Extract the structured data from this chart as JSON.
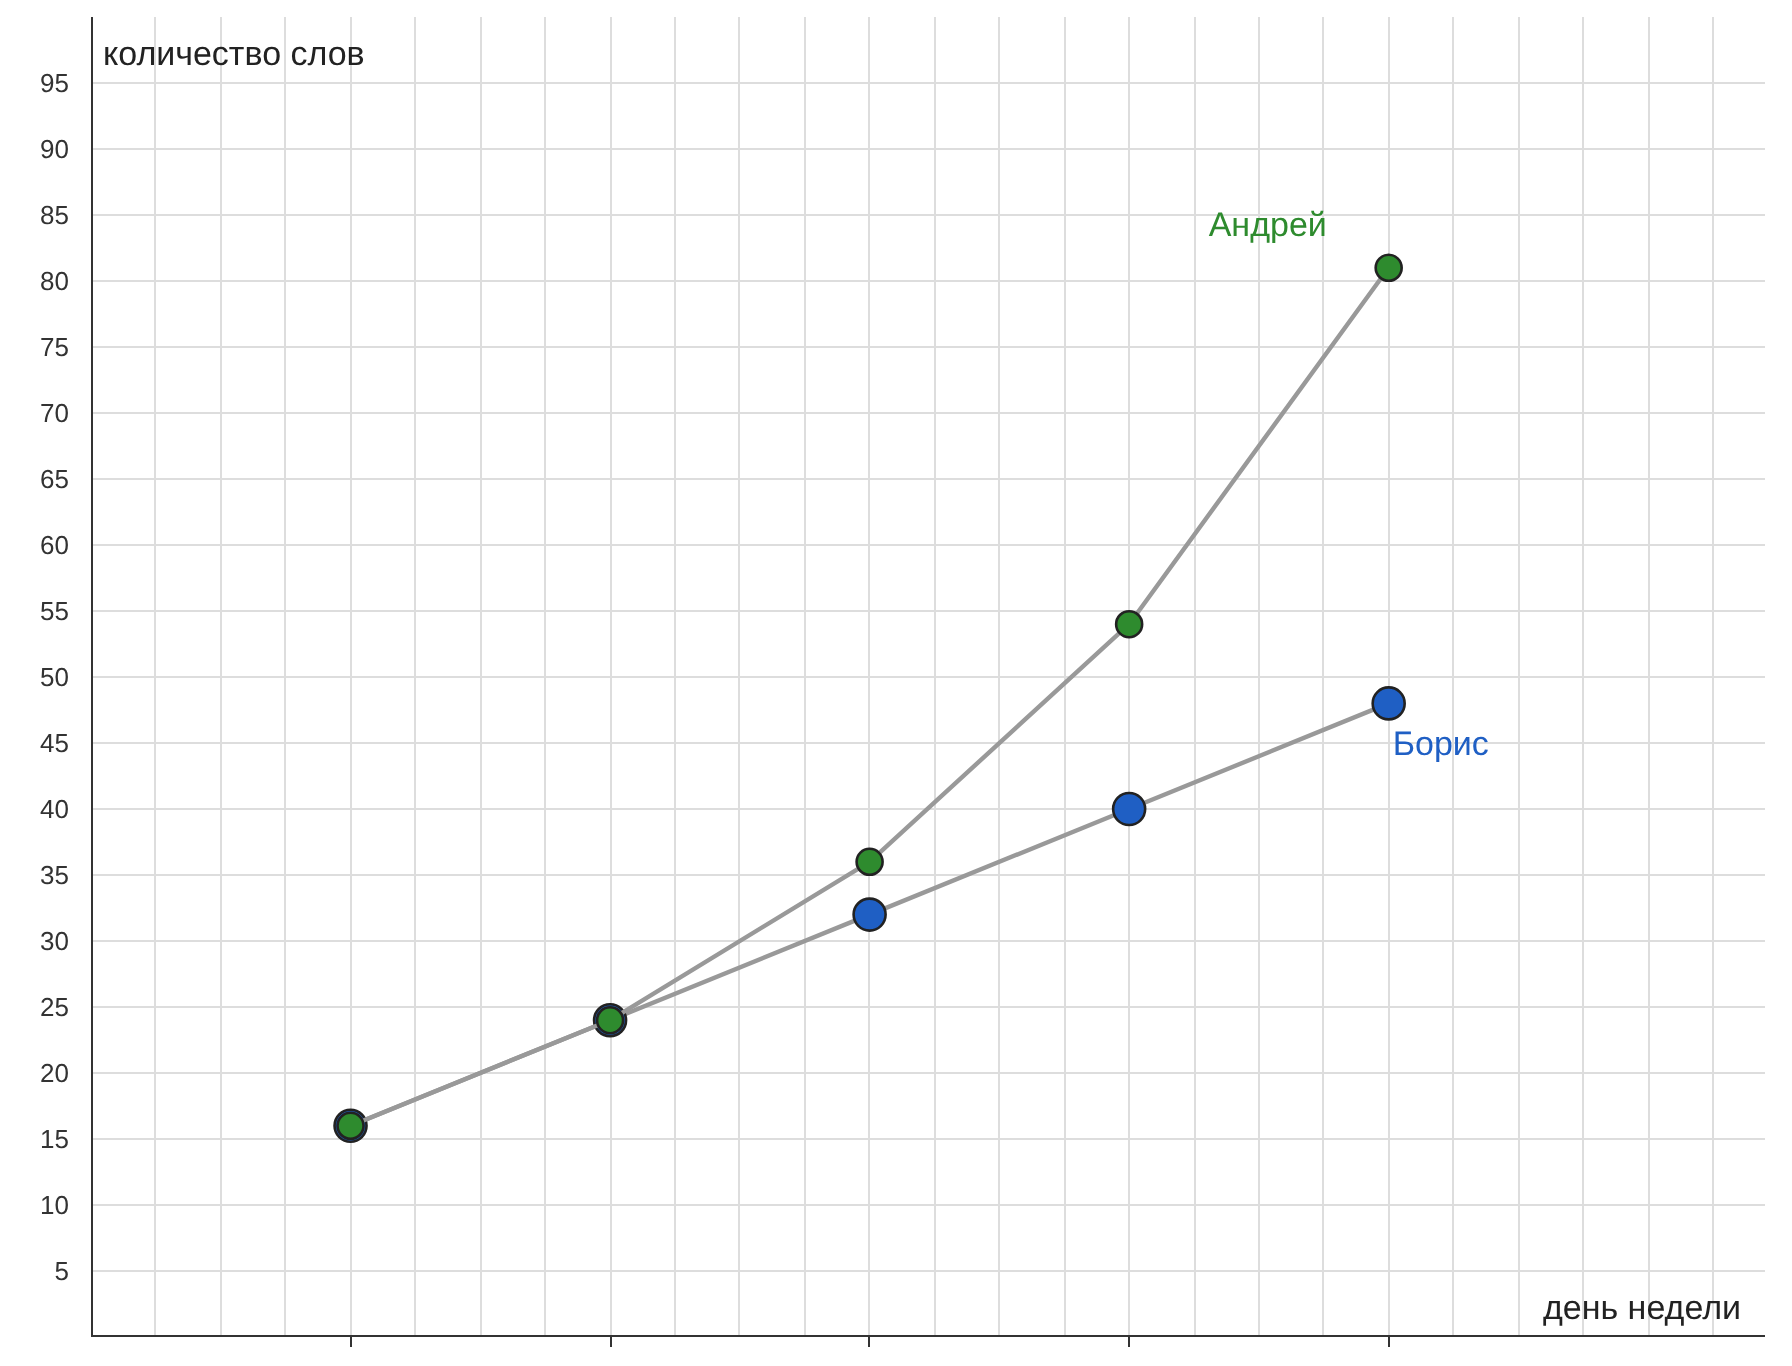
{
  "chart_data": {
    "type": "line",
    "xlabel": "день недели",
    "ylabel": "количество слов",
    "categories": [
      null,
      null,
      null,
      null,
      null
    ],
    "series": [
      {
        "name": "Борис",
        "color": "#1f5fc4",
        "values": [
          16,
          24,
          32,
          40,
          48
        ]
      },
      {
        "name": "Андрей",
        "color": "#2e8b2e",
        "values": [
          16,
          24,
          36,
          54,
          81
        ]
      }
    ],
    "ylim": [
      0,
      100
    ],
    "yticks": [
      5,
      10,
      15,
      20,
      25,
      30,
      35,
      40,
      45,
      50,
      55,
      60,
      65,
      70,
      75,
      80,
      85,
      90,
      95
    ],
    "grid": true,
    "marker": "circle",
    "line_style": "solid"
  }
}
